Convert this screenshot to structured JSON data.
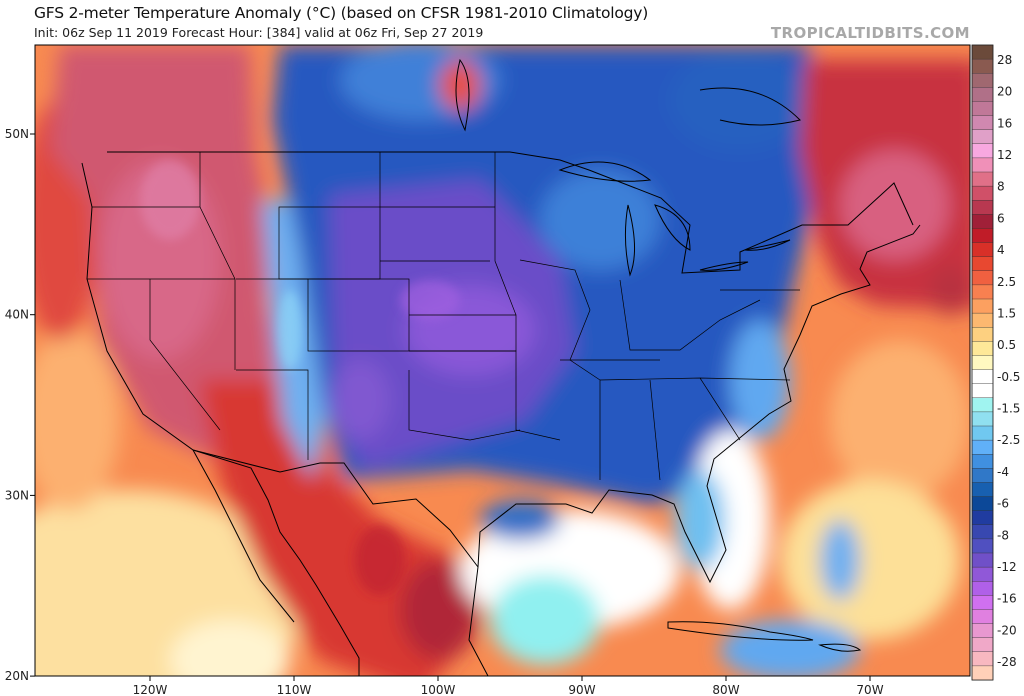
{
  "header": {
    "title": "GFS 2-meter Temperature Anomaly (°C) (based on CFSR 1981-2010 Climatology)",
    "subtitle": "Init: 06z Sep 11 2019   Forecast Hour: [384]   valid at 06z Fri, Sep 27 2019",
    "brand": "TROPICALTIDBITS.COM"
  },
  "axes": {
    "lon_ticks": [
      "120W",
      "110W",
      "100W",
      "90W",
      "80W",
      "70W"
    ],
    "lat_ticks": [
      "50N",
      "40N",
      "30N",
      "20N"
    ]
  },
  "colorbar": {
    "labels": [
      "28",
      "20",
      "16",
      "12",
      "8",
      "6",
      "4",
      "2.5",
      "1.5",
      "0.5",
      "-0.5",
      "-1.5",
      "-2.5",
      "-4",
      "-6",
      "-8",
      "-12",
      "-16",
      "-20",
      "-28"
    ],
    "colors": [
      "#6b4a3a",
      "#8a5a50",
      "#a06870",
      "#b07088",
      "#c07898",
      "#d088b0",
      "#e0a0c8",
      "#f8a8e0",
      "#f090b8",
      "#e07088",
      "#d05068",
      "#b83850",
      "#a02038",
      "#c01c28",
      "#d83028",
      "#e84830",
      "#f06040",
      "#f88050",
      "#fca060",
      "#fcb870",
      "#fdd080",
      "#fee898",
      "#fff8c0",
      "#ffffff",
      "#ffffff",
      "#a0f4f0",
      "#90e0f0",
      "#70c8f0",
      "#60b0f8",
      "#4090e0",
      "#3078c8",
      "#1860b0",
      "#0c4898",
      "#203ca0",
      "#3848b0",
      "#5050c0",
      "#7050c8",
      "#9058d8",
      "#b060e8",
      "#d070f0",
      "#e080e0",
      "#e898d0",
      "#f0a8c8",
      "#f8b8c0",
      "#ffd0b8"
    ]
  }
}
